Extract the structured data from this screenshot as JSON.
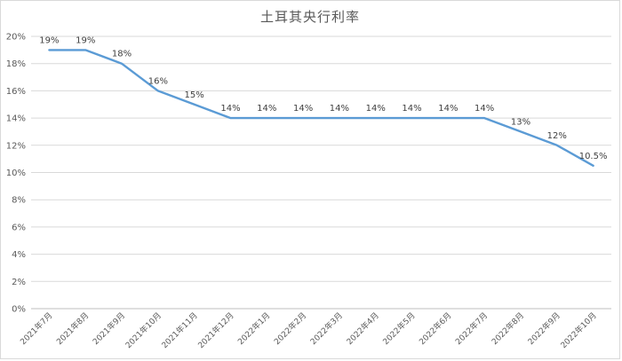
{
  "chart_data": {
    "type": "line",
    "title": "土耳其央行利率",
    "categories": [
      "2021年7月",
      "2021年8月",
      "2021年9月",
      "2021年10月",
      "2021年11月",
      "2021年12月",
      "2022年1月",
      "2022年2月",
      "2022年3月",
      "2022年4月",
      "2022年5月",
      "2022年6月",
      "2022年7月",
      "2022年8月",
      "2022年9月",
      "2022年10月"
    ],
    "series": [
      {
        "values": [
          19,
          19,
          18,
          16,
          15,
          14,
          14,
          14,
          14,
          14,
          14,
          14,
          14,
          13,
          12,
          10.5
        ],
        "data_labels": [
          "19%",
          "19%",
          "18%",
          "16%",
          "15%",
          "14%",
          "14%",
          "14%",
          "14%",
          "14%",
          "14%",
          "14%",
          "14%",
          "13%",
          "12%",
          "10.5%"
        ]
      }
    ],
    "y_ticks": [
      "0%",
      "2%",
      "4%",
      "6%",
      "8%",
      "10%",
      "12%",
      "14%",
      "16%",
      "18%",
      "20%"
    ],
    "ylim": [
      0,
      20
    ],
    "grid": true,
    "legend": "none",
    "line_color": "#5b9bd5"
  }
}
